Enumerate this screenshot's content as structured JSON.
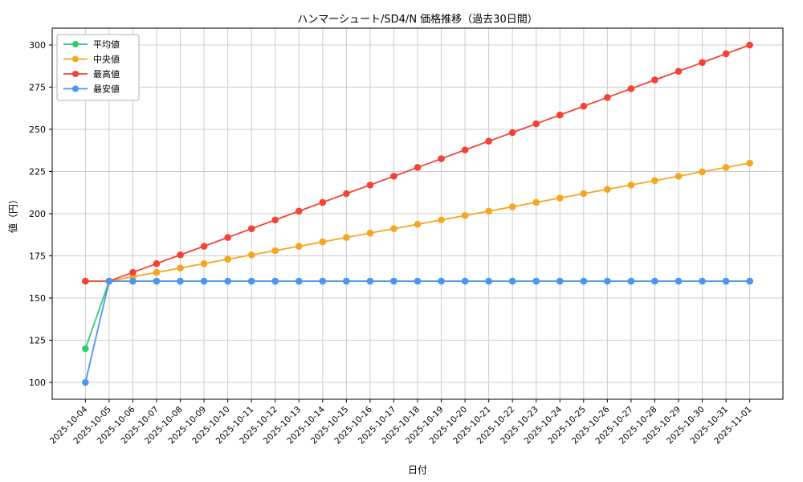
{
  "chart_data": {
    "type": "line",
    "title": "ハンマーシュート/SD4/N 価格推移（過去30日間）",
    "xlabel": "日付",
    "ylabel": "値（円）",
    "ylim": [
      90,
      310
    ],
    "yticks": [
      100,
      125,
      150,
      175,
      200,
      225,
      250,
      275,
      300
    ],
    "grid": true,
    "legend_position": "upper left",
    "x": [
      "2025-10-04",
      "2025-10-05",
      "2025-10-06",
      "2025-10-07",
      "2025-10-08",
      "2025-10-09",
      "2025-10-10",
      "2025-10-11",
      "2025-10-12",
      "2025-10-13",
      "2025-10-14",
      "2025-10-15",
      "2025-10-16",
      "2025-10-17",
      "2025-10-18",
      "2025-10-19",
      "2025-10-20",
      "2025-10-21",
      "2025-10-22",
      "2025-10-23",
      "2025-10-24",
      "2025-10-25",
      "2025-10-26",
      "2025-10-27",
      "2025-10-28",
      "2025-10-29",
      "2025-10-30",
      "2025-10-31",
      "2025-11-01"
    ],
    "series": [
      {
        "key": "average",
        "name": "平均値",
        "color": "#2ecc71",
        "values": [
          120,
          160,
          160,
          160,
          160,
          160,
          160,
          160,
          160,
          160,
          160,
          160,
          160,
          160,
          160,
          160,
          160,
          160,
          160,
          160,
          160,
          160,
          160,
          160,
          160,
          160,
          160,
          160,
          160
        ]
      },
      {
        "key": "median",
        "name": "中央値",
        "color": "#f5a623",
        "values": [
          160,
          160,
          162.6,
          165.2,
          167.8,
          170.4,
          173,
          175.6,
          178.1,
          180.7,
          183.3,
          185.9,
          188.5,
          191.1,
          193.7,
          196.3,
          198.9,
          201.5,
          204.1,
          206.7,
          209.3,
          211.9,
          214.4,
          217,
          219.6,
          222.2,
          224.8,
          227.4,
          230
        ]
      },
      {
        "key": "max",
        "name": "最高値",
        "color": "#f44336",
        "values": [
          160,
          160,
          165.2,
          170.4,
          175.6,
          180.7,
          185.9,
          191.1,
          196.3,
          201.5,
          206.7,
          211.9,
          217,
          222.2,
          227.4,
          232.6,
          237.8,
          243,
          248.1,
          253.3,
          258.5,
          263.7,
          268.9,
          274.1,
          279.3,
          284.4,
          289.6,
          294.8,
          300
        ]
      },
      {
        "key": "min",
        "name": "最安値",
        "color": "#4d94f5",
        "values": [
          100,
          160,
          160,
          160,
          160,
          160,
          160,
          160,
          160,
          160,
          160,
          160,
          160,
          160,
          160,
          160,
          160,
          160,
          160,
          160,
          160,
          160,
          160,
          160,
          160,
          160,
          160,
          160,
          160
        ]
      }
    ]
  }
}
